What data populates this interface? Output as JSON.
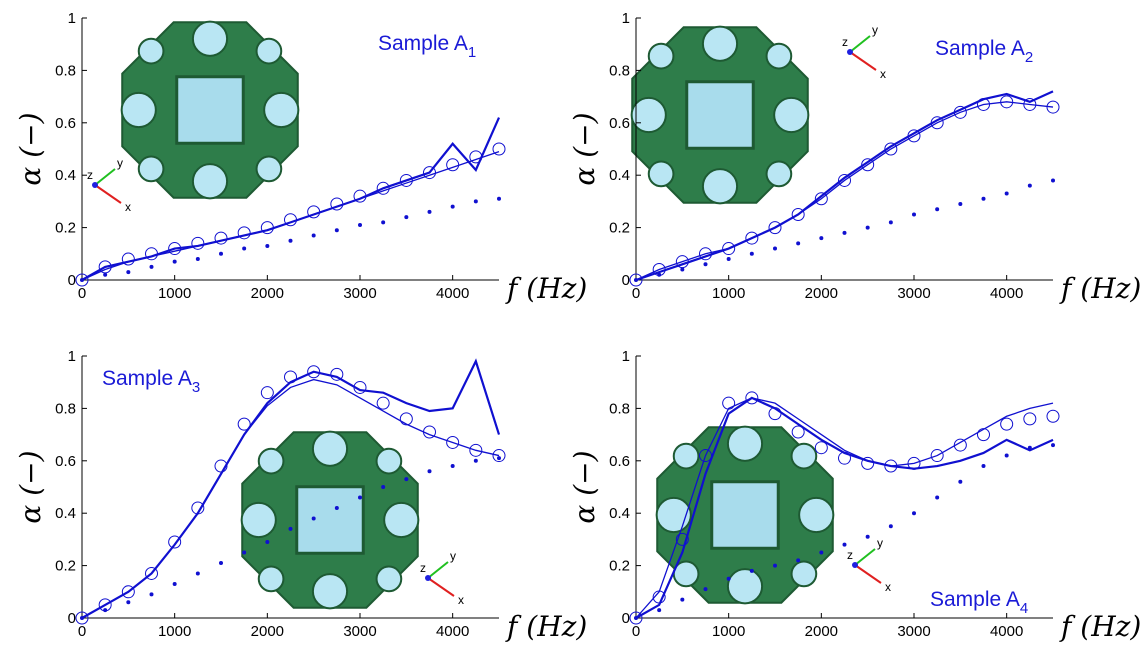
{
  "chart_data": [
    {
      "type": "line",
      "title": "Sample A",
      "title_subscript": "1",
      "x_label": "f (Hz)",
      "y_label": "α (−)",
      "inset_axes_labels": [
        "x",
        "y",
        "z"
      ],
      "x": [
        0,
        250,
        500,
        750,
        1000,
        1250,
        1500,
        1750,
        2000,
        2250,
        2500,
        2750,
        3000,
        3250,
        3500,
        3750,
        4000,
        4250,
        4500
      ],
      "xlim": [
        0,
        4500
      ],
      "xticks": [
        0,
        1000,
        2000,
        3000,
        4000
      ],
      "ylim": [
        0,
        1
      ],
      "yticks": [
        0,
        0.2,
        0.4,
        0.6,
        0.8,
        1
      ],
      "series": [
        {
          "style": "noisy-line",
          "color": "#1010d0",
          "values": [
            0,
            0.05,
            0.07,
            0.09,
            0.12,
            0.13,
            0.15,
            0.17,
            0.19,
            0.22,
            0.25,
            0.28,
            0.31,
            0.35,
            0.38,
            0.41,
            0.52,
            0.42,
            0.62
          ]
        },
        {
          "style": "line",
          "color": "#1010d0",
          "values": [
            0,
            0.04,
            0.07,
            0.09,
            0.11,
            0.13,
            0.15,
            0.17,
            0.19,
            0.22,
            0.25,
            0.28,
            0.31,
            0.34,
            0.37,
            0.4,
            0.43,
            0.46,
            0.49
          ]
        },
        {
          "style": "circles",
          "color": "#1010d0",
          "values": [
            0,
            0.05,
            0.08,
            0.1,
            0.12,
            0.14,
            0.16,
            0.18,
            0.2,
            0.23,
            0.26,
            0.29,
            0.32,
            0.35,
            0.38,
            0.41,
            0.44,
            0.47,
            0.5
          ]
        },
        {
          "style": "dots",
          "color": "#1010d0",
          "values": [
            0,
            0.02,
            0.03,
            0.05,
            0.07,
            0.08,
            0.1,
            0.12,
            0.13,
            0.15,
            0.17,
            0.19,
            0.21,
            0.22,
            0.24,
            0.26,
            0.28,
            0.3,
            0.31
          ]
        }
      ]
    },
    {
      "type": "line",
      "title": "Sample A",
      "title_subscript": "2",
      "x_label": "f (Hz)",
      "y_label": "α (−)",
      "inset_axes_labels": [
        "x",
        "y",
        "z"
      ],
      "x": [
        0,
        250,
        500,
        750,
        1000,
        1250,
        1500,
        1750,
        2000,
        2250,
        2500,
        2750,
        3000,
        3250,
        3500,
        3750,
        4000,
        4250,
        4500
      ],
      "xlim": [
        0,
        4500
      ],
      "xticks": [
        0,
        1000,
        2000,
        3000,
        4000
      ],
      "ylim": [
        0,
        1
      ],
      "yticks": [
        0,
        0.2,
        0.4,
        0.6,
        0.8,
        1
      ],
      "series": [
        {
          "style": "noisy-line",
          "color": "#1010d0",
          "values": [
            0,
            0.03,
            0.06,
            0.09,
            0.12,
            0.16,
            0.2,
            0.25,
            0.32,
            0.39,
            0.45,
            0.51,
            0.56,
            0.61,
            0.65,
            0.69,
            0.71,
            0.68,
            0.72
          ]
        },
        {
          "style": "line",
          "color": "#1010d0",
          "values": [
            0,
            0.04,
            0.07,
            0.1,
            0.12,
            0.16,
            0.2,
            0.25,
            0.31,
            0.38,
            0.44,
            0.5,
            0.55,
            0.6,
            0.64,
            0.67,
            0.68,
            0.67,
            0.66
          ]
        },
        {
          "style": "circles",
          "color": "#1010d0",
          "values": [
            0,
            0.04,
            0.07,
            0.1,
            0.12,
            0.16,
            0.2,
            0.25,
            0.31,
            0.38,
            0.44,
            0.5,
            0.55,
            0.6,
            0.64,
            0.67,
            0.68,
            0.67,
            0.66
          ]
        },
        {
          "style": "dots",
          "color": "#1010d0",
          "values": [
            0,
            0.02,
            0.04,
            0.06,
            0.08,
            0.1,
            0.12,
            0.14,
            0.16,
            0.18,
            0.2,
            0.22,
            0.25,
            0.27,
            0.29,
            0.31,
            0.33,
            0.36,
            0.38
          ]
        }
      ]
    },
    {
      "type": "line",
      "title": "Sample A",
      "title_subscript": "3",
      "x_label": "f (Hz)",
      "y_label": "α (−)",
      "inset_axes_labels": [
        "x",
        "y",
        "z"
      ],
      "x": [
        0,
        250,
        500,
        750,
        1000,
        1250,
        1500,
        1750,
        2000,
        2250,
        2500,
        2750,
        3000,
        3250,
        3500,
        3750,
        4000,
        4250,
        4500
      ],
      "xlim": [
        0,
        4500
      ],
      "xticks": [
        0,
        1000,
        2000,
        3000,
        4000
      ],
      "ylim": [
        0,
        1
      ],
      "yticks": [
        0,
        0.2,
        0.4,
        0.6,
        0.8,
        1
      ],
      "series": [
        {
          "style": "noisy-line",
          "color": "#1010d0",
          "values": [
            0,
            0.05,
            0.1,
            0.17,
            0.28,
            0.4,
            0.55,
            0.7,
            0.82,
            0.9,
            0.94,
            0.92,
            0.87,
            0.86,
            0.82,
            0.79,
            0.8,
            0.98,
            0.7
          ]
        },
        {
          "style": "line",
          "color": "#1010d0",
          "values": [
            0,
            0.05,
            0.1,
            0.17,
            0.28,
            0.4,
            0.55,
            0.7,
            0.81,
            0.88,
            0.91,
            0.89,
            0.84,
            0.79,
            0.74,
            0.7,
            0.67,
            0.64,
            0.62
          ]
        },
        {
          "style": "circles",
          "color": "#1010d0",
          "values": [
            0,
            0.05,
            0.1,
            0.17,
            0.29,
            0.42,
            0.58,
            0.74,
            0.86,
            0.92,
            0.94,
            0.93,
            0.88,
            0.82,
            0.76,
            0.71,
            0.67,
            0.64,
            0.62
          ]
        },
        {
          "style": "dots",
          "color": "#1010d0",
          "values": [
            0,
            0.03,
            0.06,
            0.09,
            0.13,
            0.17,
            0.21,
            0.25,
            0.29,
            0.34,
            0.38,
            0.42,
            0.46,
            0.5,
            0.53,
            0.56,
            0.58,
            0.6,
            0.61
          ]
        }
      ]
    },
    {
      "type": "line",
      "title": "Sample A",
      "title_subscript": "4",
      "x_label": "f (Hz)",
      "y_label": "α (−)",
      "inset_axes_labels": [
        "x",
        "y",
        "z"
      ],
      "x": [
        0,
        250,
        500,
        750,
        1000,
        1250,
        1500,
        1750,
        2000,
        2250,
        2500,
        2750,
        3000,
        3250,
        3500,
        3750,
        4000,
        4250,
        4500
      ],
      "xlim": [
        0,
        4500
      ],
      "xticks": [
        0,
        1000,
        2000,
        3000,
        4000
      ],
      "ylim": [
        0,
        1
      ],
      "yticks": [
        0,
        0.2,
        0.4,
        0.6,
        0.8,
        1
      ],
      "series": [
        {
          "style": "noisy-line",
          "color": "#1010d0",
          "values": [
            0,
            0.05,
            0.25,
            0.55,
            0.78,
            0.84,
            0.8,
            0.74,
            0.68,
            0.63,
            0.6,
            0.58,
            0.57,
            0.58,
            0.6,
            0.63,
            0.68,
            0.64,
            0.68
          ]
        },
        {
          "style": "line",
          "color": "#1010d0",
          "values": [
            0,
            0.1,
            0.35,
            0.62,
            0.8,
            0.84,
            0.82,
            0.76,
            0.7,
            0.64,
            0.6,
            0.58,
            0.59,
            0.62,
            0.67,
            0.72,
            0.77,
            0.8,
            0.82
          ]
        },
        {
          "style": "circles",
          "color": "#1010d0",
          "values": [
            0,
            0.08,
            0.3,
            0.62,
            0.82,
            0.84,
            0.78,
            0.71,
            0.65,
            0.61,
            0.59,
            0.58,
            0.59,
            0.62,
            0.66,
            0.7,
            0.74,
            0.76,
            0.77
          ]
        },
        {
          "style": "dots",
          "color": "#1010d0",
          "values": [
            0,
            0.03,
            0.07,
            0.11,
            0.15,
            0.18,
            0.2,
            0.22,
            0.25,
            0.28,
            0.31,
            0.35,
            0.4,
            0.46,
            0.52,
            0.58,
            0.62,
            0.65,
            0.66
          ]
        }
      ]
    }
  ]
}
